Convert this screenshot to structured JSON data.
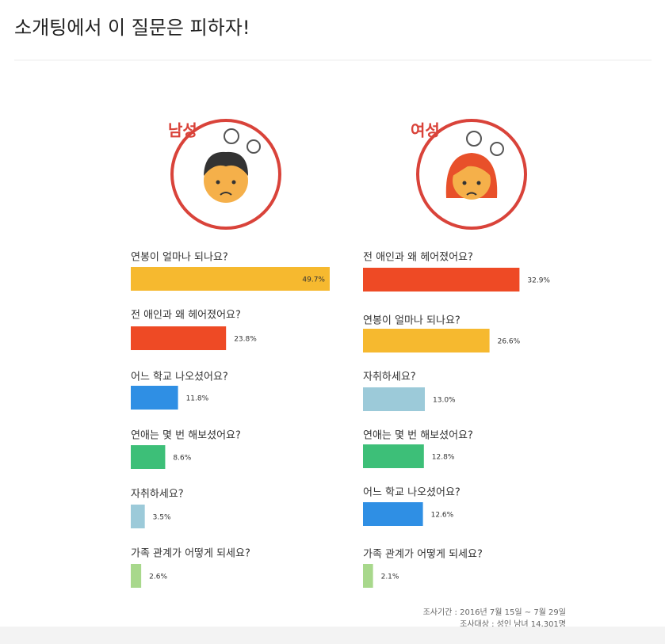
{
  "page_title": "소개팅에서 이 질문은 피하자!",
  "chart_data": [
    {
      "type": "bar",
      "title": "남성",
      "categories": [
        "연봉이 얼마나 되나요?",
        "전 애인과 왜 헤어졌어요?",
        "어느 학교 나오셨어요?",
        "연애는 몇 번 해보셨어요?",
        "자취하세요?",
        "가족 관계가 어떻게 되세요?"
      ],
      "values": [
        49.7,
        23.8,
        11.8,
        8.6,
        3.5,
        2.6
      ],
      "value_labels": [
        "49.7%",
        "23.8%",
        "11.8%",
        "8.6%",
        "3.5%",
        "2.6%"
      ],
      "colors": [
        "#f6b92f",
        "#ee4a25",
        "#2f8fe4",
        "#3dbf78",
        "#9ccad9",
        "#a8d88c"
      ]
    },
    {
      "type": "bar",
      "title": "여성",
      "categories": [
        "전 애인과 왜 헤어졌어요?",
        "연봉이 얼마나 되나요?",
        "자취하세요?",
        "연애는 몇 번 해보셨어요?",
        "어느 학교 나오셨어요?",
        "가족 관계가 어떻게 되세요?"
      ],
      "values": [
        32.9,
        26.6,
        13.0,
        12.8,
        12.6,
        2.1
      ],
      "value_labels": [
        "32.9%",
        "26.6%",
        "13.0%",
        "12.8%",
        "12.6%",
        "2.1%"
      ],
      "colors": [
        "#ee4a25",
        "#f6b92f",
        "#9ccad9",
        "#3dbf78",
        "#2f8fe4",
        "#a8d88c"
      ]
    }
  ],
  "footnotes": [
    "조사기간 : 2016년 7월 15일 ~ 7월 29일",
    "조사대상 : 성인 남녀 14,301명"
  ]
}
